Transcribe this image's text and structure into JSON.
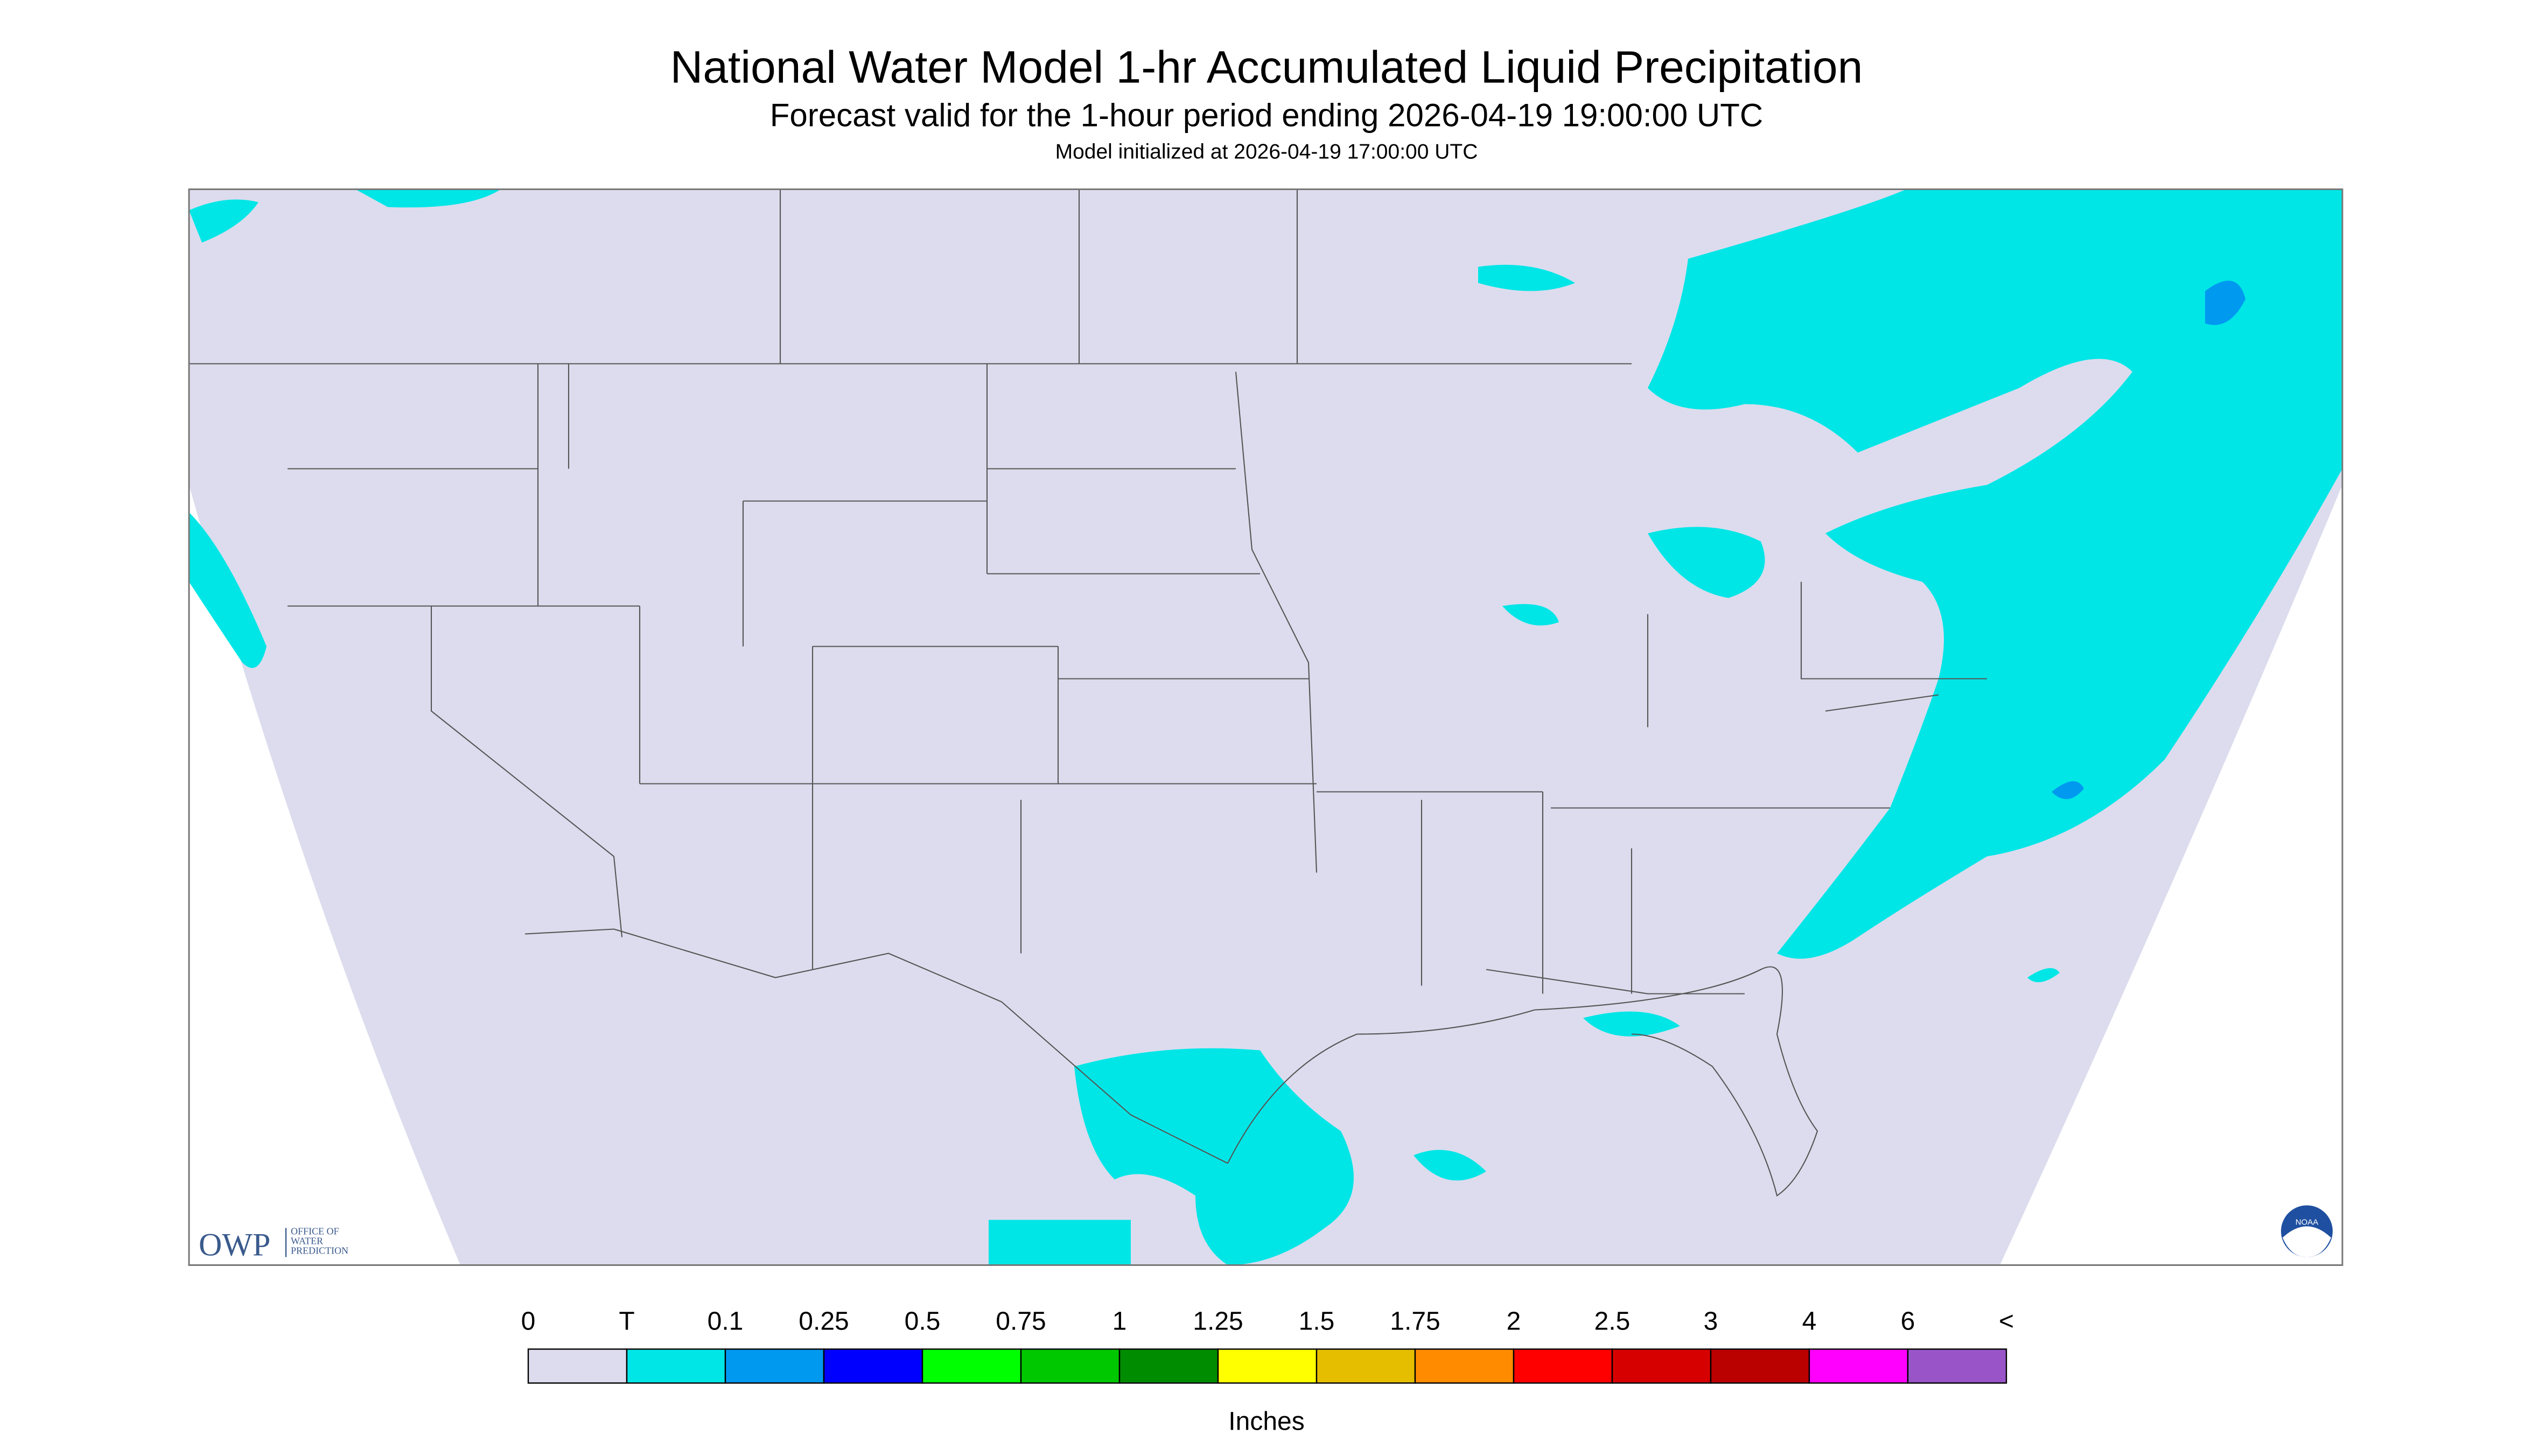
{
  "header": {
    "title": "National Water Model 1-hr Accumulated Liquid Precipitation",
    "subtitle": "Forecast valid for the 1-hour period ending 2026-04-19 19:00:00 UTC",
    "init": "Model initialized at 2026-04-19 17:00:00 UTC"
  },
  "legend": {
    "labels": [
      "0",
      "T",
      "0.1",
      "0.25",
      "0.5",
      "0.75",
      "1",
      "1.25",
      "1.5",
      "1.75",
      "2",
      "2.5",
      "3",
      "4",
      "6",
      "<"
    ],
    "colors": [
      "#dcdcee",
      "#00e6e6",
      "#0099f0",
      "#0000ff",
      "#00ff00",
      "#00c800",
      "#008c00",
      "#ffff00",
      "#e6be00",
      "#ff8c00",
      "#ff0000",
      "#d70000",
      "#bb0000",
      "#ff00ff",
      "#9955c8"
    ],
    "unit": "Inches"
  },
  "logos": {
    "owp": "OWP",
    "owp_text": [
      "OFFICE OF",
      "WATER",
      "PREDICTION"
    ],
    "noaa": "NOAA"
  }
}
